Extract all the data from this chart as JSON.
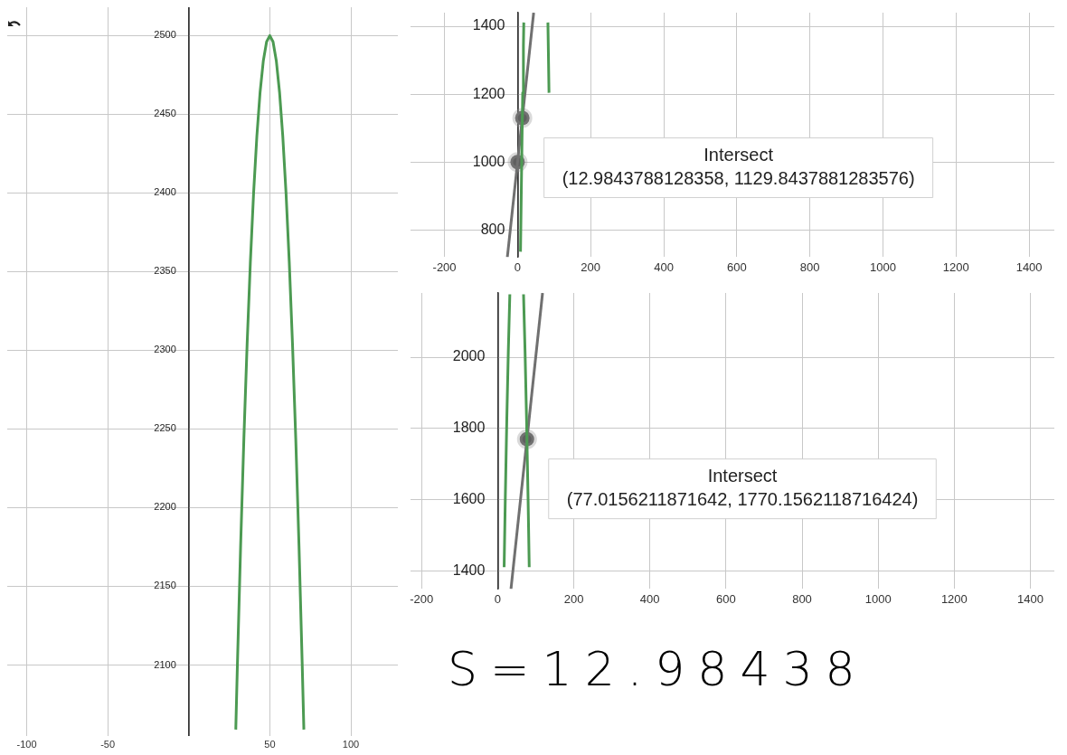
{
  "chart_data": [
    {
      "type": "line",
      "xlim": [
        -112,
        129
      ],
      "ylim": [
        2055,
        2518
      ],
      "xticks": [
        -100,
        -50,
        {
          "value": 0,
          "label": null
        },
        50,
        100
      ],
      "yticks": [
        2100,
        2150,
        2200,
        2250,
        2300,
        2350,
        2400,
        2450,
        2500
      ],
      "grid": true,
      "series": [
        {
          "type": "line",
          "color": "#4c9a52",
          "x": [
            29,
            30,
            32,
            34,
            36,
            38,
            40,
            42,
            44,
            46,
            48,
            50,
            52,
            54,
            56,
            58,
            60,
            62,
            64,
            66,
            68,
            70,
            71
          ],
          "values": [
            2059,
            2100,
            2176,
            2244,
            2304,
            2356,
            2400,
            2436,
            2464,
            2484,
            2496,
            2500,
            2496,
            2484,
            2464,
            2436,
            2400,
            2356,
            2304,
            2244,
            2176,
            2100,
            2059
          ]
        }
      ]
    },
    {
      "type": "line",
      "xlim": [
        -293,
        1469
      ],
      "ylim": [
        720,
        1440
      ],
      "xticks": [
        -200,
        0,
        200,
        400,
        600,
        800,
        1000,
        1200,
        1400
      ],
      "yticks": [
        800,
        1000,
        1200,
        1400
      ],
      "grid": true,
      "series": [
        {
          "type": "line",
          "color": "#4c9a52",
          "x": [
            8,
            10,
            12,
            14,
            16,
            17,
            50,
            83,
            84,
            86
          ],
          "values": [
            736,
            900,
            1056,
            1204,
            1344,
            1411,
            null,
            1411,
            1344,
            1204
          ]
        },
        {
          "type": "line",
          "color": "#707070",
          "x": [
            -28,
            44
          ],
          "values": [
            720,
            1440
          ]
        },
        {
          "type": "scatter",
          "color": "#5f5f5f",
          "x": [
            0,
            12.9843788128358
          ],
          "values": [
            1000,
            1129.8437881283576
          ]
        }
      ],
      "annotations": [
        {
          "text": "Intersect\n(12.9843788128358, 1129.8437881283576)",
          "x": 12.9843788128358,
          "y": 1129.8437881283576
        }
      ]
    },
    {
      "type": "line",
      "xlim": [
        -229,
        1463
      ],
      "ylim": [
        1350,
        2180
      ],
      "xticks": [
        -200,
        0,
        200,
        400,
        600,
        800,
        1000,
        1200,
        1400
      ],
      "yticks": [
        1400,
        1600,
        1800,
        2000
      ],
      "grid": true,
      "series": [
        {
          "type": "line",
          "color": "#4c9a52",
          "x": [
            17,
            20,
            24,
            28,
            32,
            50,
            68,
            72,
            76,
            80,
            83
          ],
          "values": [
            1411,
            1600,
            1824,
            2016,
            2176,
            null,
            2176,
            2016,
            1824,
            1600,
            1411
          ]
        },
        {
          "type": "line",
          "color": "#707070",
          "x": [
            35,
            118
          ],
          "values": [
            1350,
            2180
          ]
        },
        {
          "type": "scatter",
          "color": "#5f5f5f",
          "x": [
            77.0156211871642
          ],
          "values": [
            1770.1562118716424
          ]
        }
      ],
      "annotations": [
        {
          "text": "Intersect\n(77.0156211871642, 1770.1562118716424)",
          "x": 77.0156211871642,
          "y": 1770.1562118716424
        },
        "S=12.98438"
      ]
    }
  ]
}
